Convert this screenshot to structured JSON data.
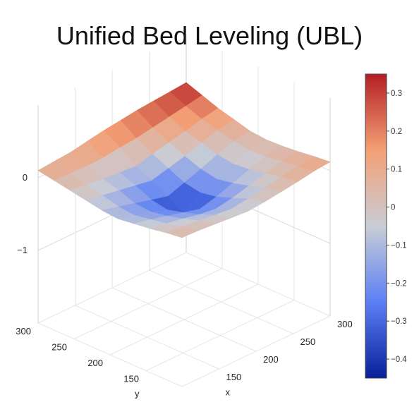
{
  "chart_data": {
    "type": "surface3d",
    "title": "Unified Bed Leveling (UBL)",
    "colorscale": [
      "#08209a",
      "#5b7ff6",
      "#c9cdd6",
      "#f4a075",
      "#b41f24"
    ],
    "grid": true,
    "x_axis": {
      "label": "x",
      "range": [
        100,
        300
      ],
      "ticks": [
        "150",
        "200",
        "250",
        "300"
      ]
    },
    "y_axis": {
      "label": "y",
      "range": [
        100,
        300
      ],
      "ticks": [
        "150",
        "200",
        "250",
        "300"
      ]
    },
    "z_axis": {
      "label": "",
      "range": [
        -2,
        1
      ],
      "ticks": [
        "0",
        "−1"
      ]
    },
    "colorbar": {
      "range": [
        -0.45,
        0.35
      ],
      "ticks": [
        {
          "value": 0.3,
          "label": "0.3"
        },
        {
          "value": 0.2,
          "label": "0.2"
        },
        {
          "value": 0.1,
          "label": "0.1"
        },
        {
          "value": 0,
          "label": "0"
        },
        {
          "value": -0.1,
          "label": "−0.1"
        },
        {
          "value": -0.2,
          "label": "−0.2"
        },
        {
          "value": -0.3,
          "label": "−0.3"
        },
        {
          "value": -0.4,
          "label": "−0.4"
        }
      ]
    },
    "surface_z": [
      [
        0.05,
        0.02,
        -0.02,
        -0.05,
        -0.08,
        -0.06,
        -0.02,
        0.02,
        0.06,
        0.1
      ],
      [
        0.04,
        0.0,
        -0.06,
        -0.1,
        -0.14,
        -0.12,
        -0.06,
        -0.01,
        0.05,
        0.12
      ],
      [
        0.02,
        -0.03,
        -0.1,
        -0.16,
        -0.2,
        -0.18,
        -0.1,
        -0.04,
        0.04,
        0.14
      ],
      [
        0.0,
        -0.06,
        -0.15,
        -0.22,
        -0.28,
        -0.24,
        -0.14,
        -0.06,
        0.05,
        0.18
      ],
      [
        -0.02,
        -0.08,
        -0.18,
        -0.28,
        -0.45,
        -0.3,
        -0.18,
        -0.08,
        0.08,
        0.22
      ],
      [
        0.0,
        -0.05,
        -0.14,
        -0.22,
        -0.26,
        -0.22,
        -0.12,
        -0.02,
        0.1,
        0.25
      ],
      [
        0.03,
        -0.01,
        -0.08,
        -0.14,
        -0.18,
        -0.14,
        -0.06,
        0.03,
        0.14,
        0.28
      ],
      [
        0.06,
        0.03,
        -0.02,
        -0.06,
        -0.08,
        -0.05,
        0.02,
        0.08,
        0.18,
        0.3
      ],
      [
        0.1,
        0.07,
        0.04,
        0.01,
        0.0,
        0.03,
        0.08,
        0.14,
        0.22,
        0.32
      ],
      [
        0.12,
        0.1,
        0.07,
        0.05,
        0.04,
        0.06,
        0.12,
        0.18,
        0.26,
        0.34
      ]
    ]
  }
}
